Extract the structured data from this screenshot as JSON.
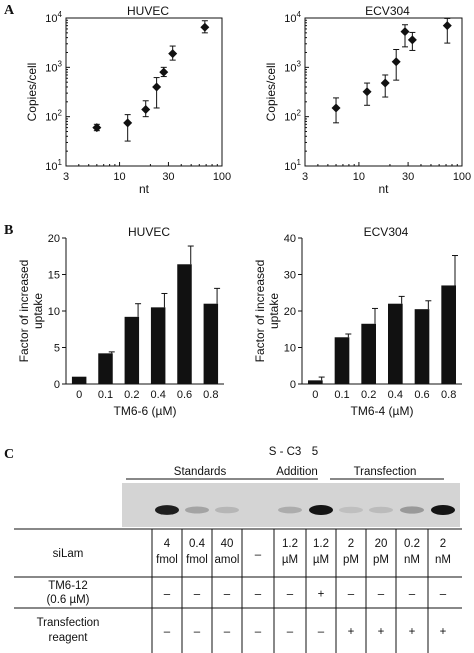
{
  "panels": {
    "a_letter": "A",
    "b_letter": "B",
    "c_letter": "C"
  },
  "chart_data": [
    {
      "type": "scatter",
      "title": "HUVEC",
      "xlabel": "nt",
      "ylabel": "Copies/cell",
      "xscale": "log",
      "yscale": "log",
      "xlim": [
        3,
        100
      ],
      "ylim": [
        10,
        10000
      ],
      "xticks": [
        "3",
        "10",
        "30",
        "100"
      ],
      "yticks": [
        "10^1",
        "10^2",
        "10^3",
        "10^4"
      ],
      "points": [
        {
          "x": 6,
          "y": 60,
          "lo": 52,
          "hi": 70
        },
        {
          "x": 12,
          "y": 75,
          "lo": 32,
          "hi": 110
        },
        {
          "x": 18,
          "y": 140,
          "lo": 100,
          "hi": 210
        },
        {
          "x": 23,
          "y": 400,
          "lo": 150,
          "hi": 620
        },
        {
          "x": 27,
          "y": 800,
          "lo": 650,
          "hi": 1000
        },
        {
          "x": 33,
          "y": 1900,
          "lo": 1400,
          "hi": 2700
        },
        {
          "x": 68,
          "y": 6500,
          "lo": 5000,
          "hi": 8800
        }
      ]
    },
    {
      "type": "scatter",
      "title": "ECV304",
      "xlabel": "nt",
      "ylabel": "Copies/cell",
      "xscale": "log",
      "yscale": "log",
      "xlim": [
        3,
        100
      ],
      "ylim": [
        10,
        10000
      ],
      "xticks": [
        "3",
        "10",
        "30",
        "100"
      ],
      "yticks": [
        "10^1",
        "10^2",
        "10^3",
        "10^4"
      ],
      "points": [
        {
          "x": 6,
          "y": 150,
          "lo": 75,
          "hi": 240
        },
        {
          "x": 12,
          "y": 320,
          "lo": 170,
          "hi": 480
        },
        {
          "x": 18,
          "y": 480,
          "lo": 250,
          "hi": 700
        },
        {
          "x": 23,
          "y": 1300,
          "lo": 550,
          "hi": 2300
        },
        {
          "x": 28,
          "y": 5300,
          "lo": 2600,
          "hi": 7300
        },
        {
          "x": 33,
          "y": 3600,
          "lo": 2200,
          "hi": 5100
        },
        {
          "x": 72,
          "y": 7000,
          "lo": 3100,
          "hi": 9800
        }
      ]
    },
    {
      "type": "bar",
      "title": "HUVEC",
      "xlabel": "TM6-6 (µM)",
      "ylabel": "Factor of increased uptake",
      "ylim": [
        0,
        20
      ],
      "yticks": [
        "0",
        "5",
        "10",
        "15",
        "20"
      ],
      "categories": [
        "0",
        "0.1",
        "0.2",
        "0.4",
        "0.6",
        "0.8"
      ],
      "values": [
        1.0,
        4.2,
        9.2,
        10.5,
        16.4,
        11.0
      ],
      "errors": [
        0,
        0.2,
        1.8,
        1.9,
        2.5,
        2.1
      ]
    },
    {
      "type": "bar",
      "title": "ECV304",
      "xlabel": "TM6-4 (µM)",
      "ylabel": "Factor of increased uptake",
      "ylim": [
        0,
        40
      ],
      "yticks": [
        "0",
        "10",
        "20",
        "30",
        "40"
      ],
      "categories": [
        "0",
        "0.1",
        "0.2",
        "0.4",
        "0.6",
        "0.8"
      ],
      "values": [
        1.0,
        12.8,
        16.5,
        22.0,
        20.5,
        27.0
      ],
      "errors": [
        0.9,
        0.9,
        4.2,
        2.0,
        2.3,
        8.2
      ]
    },
    {
      "type": "table",
      "groups": [
        "Standards",
        "S - C3 5\nAddition",
        "Transfection"
      ],
      "group_line1": "S - C3",
      "group_line1b": "5",
      "group_line2": "Addition",
      "rows": [
        {
          "label": "siLam",
          "cells": [
            [
              "4",
              "fmol"
            ],
            [
              "0.4",
              "fmol"
            ],
            [
              "40",
              "amol"
            ],
            [
              "–"
            ],
            [
              "1.2",
              "µM"
            ],
            [
              "1.2",
              "µM"
            ],
            [
              "2",
              "pM"
            ],
            [
              "20",
              "pM"
            ],
            [
              "0.2",
              "nM"
            ],
            [
              "2",
              "nM"
            ]
          ]
        },
        {
          "label": "TM6-12\n(0.6 µM)",
          "label1": "TM6-12",
          "label2": "(0.6 µM)",
          "cells": [
            [
              "–"
            ],
            [
              "–"
            ],
            [
              "–"
            ],
            [
              "–"
            ],
            [
              "–"
            ],
            [
              "+"
            ],
            [
              "–"
            ],
            [
              "–"
            ],
            [
              "–"
            ],
            [
              "–"
            ]
          ]
        },
        {
          "label": "Transfection\nreagent",
          "label1": "Transfection",
          "label2": "reagent",
          "cells": [
            [
              "–"
            ],
            [
              "–"
            ],
            [
              "–"
            ],
            [
              "–"
            ],
            [
              "–"
            ],
            [
              "–"
            ],
            [
              "+"
            ],
            [
              "+"
            ],
            [
              "+"
            ],
            [
              "+"
            ]
          ]
        }
      ],
      "band_intensity": [
        0.95,
        0.25,
        0.15,
        0,
        0.2,
        1.0,
        0.1,
        0.12,
        0.3,
        1.0
      ]
    }
  ]
}
